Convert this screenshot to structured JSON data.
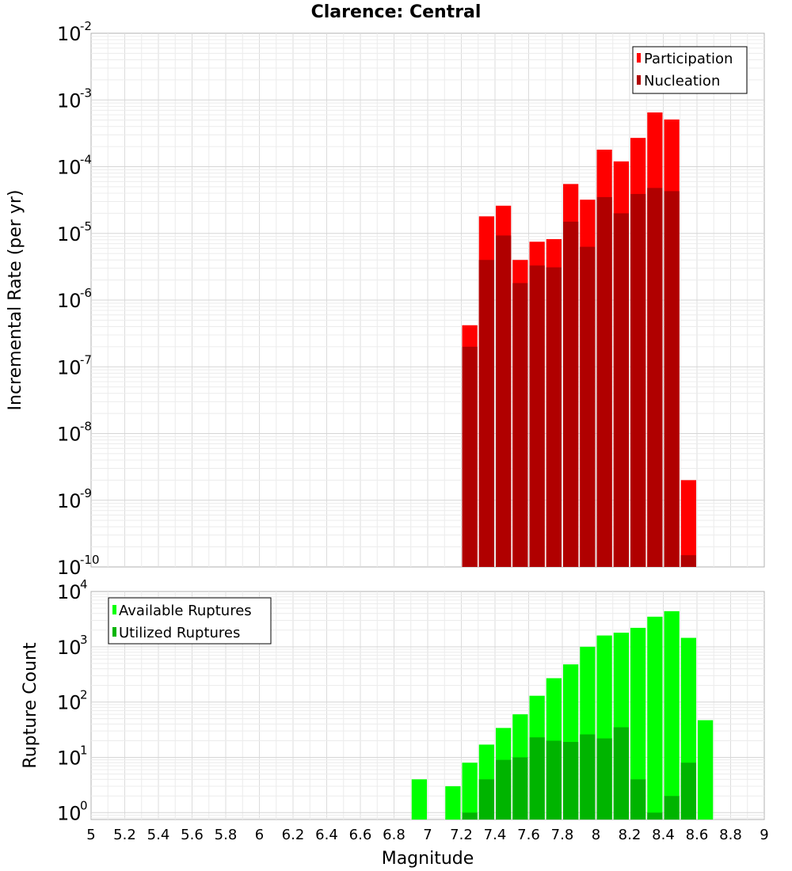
{
  "title": "Clarence: Central",
  "chart_data": [
    {
      "type": "bar",
      "ylabel": "Incremental Rate (per yr)",
      "xlabel": "",
      "yscale": "log",
      "ylim": [
        1e-10,
        0.01
      ],
      "xlim": [
        5,
        9
      ],
      "grid": true,
      "legend_placement": "top-right",
      "bin_width": 0.1,
      "x": [
        7.25,
        7.35,
        7.45,
        7.55,
        7.65,
        7.75,
        7.85,
        7.95,
        8.05,
        8.15,
        8.25,
        8.35,
        8.45,
        8.55
      ],
      "series": [
        {
          "name": "Participation",
          "color": "#ff0000",
          "values": [
            4.2e-07,
            1.8e-05,
            2.6e-05,
            4e-06,
            7.5e-06,
            8.2e-06,
            5.5e-05,
            3.2e-05,
            0.00018,
            0.00012,
            0.00027,
            0.00065,
            0.00051,
            2e-09
          ]
        },
        {
          "name": "Nucleation",
          "color": "#b00000",
          "values": [
            2e-07,
            4e-06,
            9.3e-06,
            1.8e-06,
            3.3e-06,
            3.1e-06,
            1.5e-05,
            6.3e-06,
            3.5e-05,
            2e-05,
            3.9e-05,
            4.8e-05,
            4.3e-05,
            1.5e-10
          ]
        }
      ],
      "y_ticks": [
        {
          "base": "10",
          "exp": "-10"
        },
        {
          "base": "10",
          "exp": "-9"
        },
        {
          "base": "10",
          "exp": "-8"
        },
        {
          "base": "10",
          "exp": "-7"
        },
        {
          "base": "10",
          "exp": "-6"
        },
        {
          "base": "10",
          "exp": "-5"
        },
        {
          "base": "10",
          "exp": "-4"
        },
        {
          "base": "10",
          "exp": "-3"
        },
        {
          "base": "10",
          "exp": "-2"
        }
      ]
    },
    {
      "type": "bar",
      "ylabel": "Rupture Count",
      "xlabel": "Magnitude",
      "yscale": "log",
      "ylim": [
        0.75,
        10000
      ],
      "xlim": [
        5,
        9
      ],
      "grid": true,
      "legend_placement": "top-left",
      "bin_width": 0.1,
      "series": [
        {
          "name": "Available Ruptures",
          "color": "#00ff00",
          "x": [
            6.95,
            7.15,
            7.25,
            7.35,
            7.45,
            7.55,
            7.65,
            7.75,
            7.85,
            7.95,
            8.05,
            8.15,
            8.25,
            8.35,
            8.45,
            8.55,
            8.65
          ],
          "values": [
            4,
            3,
            8,
            17,
            34,
            60,
            130,
            270,
            480,
            1000,
            1600,
            1800,
            2200,
            3500,
            4400,
            1450,
            47
          ]
        },
        {
          "name": "Utilized Ruptures",
          "color": "#00b400",
          "x": [
            7.25,
            7.35,
            7.45,
            7.55,
            7.65,
            7.75,
            7.85,
            7.95,
            8.05,
            8.15,
            8.25,
            8.35,
            8.45,
            8.55
          ],
          "values": [
            1,
            4,
            9,
            10,
            23,
            20,
            19,
            26,
            22,
            35,
            4,
            1,
            2,
            8
          ]
        }
      ],
      "y_ticks": [
        {
          "base": "10",
          "exp": "0"
        },
        {
          "base": "10",
          "exp": "1"
        },
        {
          "base": "10",
          "exp": "2"
        },
        {
          "base": "10",
          "exp": "3"
        },
        {
          "base": "10",
          "exp": "4"
        }
      ],
      "x_tick_labels": [
        "5",
        "5.2",
        "5.4",
        "5.6",
        "5.8",
        "6",
        "6.2",
        "6.4",
        "6.6",
        "6.8",
        "7",
        "7.2",
        "7.4",
        "7.6",
        "7.8",
        "8",
        "8.2",
        "8.4",
        "8.6",
        "8.8",
        "9"
      ]
    }
  ]
}
